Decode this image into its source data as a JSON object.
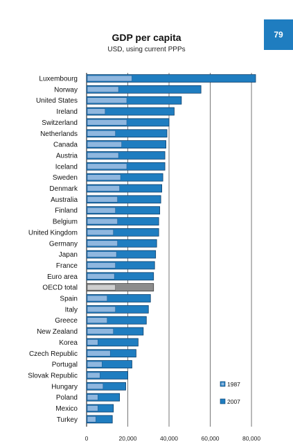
{
  "page_number": "79",
  "colors": {
    "bar_2007": "#1f7dc0",
    "bar_1987": "#8fb7df",
    "bar_oecd_2007": "#8c8c8c",
    "bar_oecd_1987": "#cfcfcf",
    "bar_outline": "#0d3f6b",
    "grid": "#666666",
    "badge": "#1f7dc0"
  },
  "chart_data": {
    "type": "bar",
    "orientation": "horizontal",
    "title": "GDP per capita",
    "subtitle": "USD, using current PPPs",
    "xlim": [
      0,
      82000
    ],
    "x_ticks": [
      0,
      20000,
      40000,
      60000,
      80000
    ],
    "x_tick_labels": [
      "0",
      "20,000",
      "40,000",
      "60,000",
      "80,000"
    ],
    "grid": "vertical",
    "legend_position": "bottom-right",
    "highlight_category": "OECD total",
    "categories": [
      "Luxembourg",
      "Norway",
      "United States",
      "Ireland",
      "Switzerland",
      "Netherlands",
      "Canada",
      "Austria",
      "Iceland",
      "Sweden",
      "Denmark",
      "Australia",
      "Finland",
      "Belgium",
      "United Kingdom",
      "Germany",
      "Japan",
      "France",
      "Euro area",
      "OECD total",
      "Spain",
      "Italy",
      "Greece",
      "New Zealand",
      "Korea",
      "Czech Republic",
      "Portugal",
      "Slovak Republic",
      "Hungary",
      "Poland",
      "Mexico",
      "Turkey"
    ],
    "series": [
      {
        "name": "1987",
        "values": [
          22000,
          15500,
          19500,
          9000,
          19500,
          14000,
          17000,
          15500,
          19500,
          16500,
          16000,
          15000,
          14000,
          15000,
          13000,
          15000,
          14500,
          14000,
          13500,
          14000,
          10000,
          14000,
          10000,
          13000,
          5500,
          11500,
          7500,
          6500,
          8000,
          5500,
          5500,
          4500
        ]
      },
      {
        "name": "2007",
        "values": [
          82000,
          55500,
          46000,
          42500,
          40000,
          39000,
          38500,
          38000,
          38000,
          37000,
          36500,
          36000,
          35500,
          35000,
          35000,
          34000,
          33500,
          33000,
          32500,
          32500,
          31000,
          30000,
          29000,
          27500,
          25000,
          24000,
          22000,
          20000,
          19000,
          16000,
          13000,
          12500
        ]
      }
    ]
  }
}
